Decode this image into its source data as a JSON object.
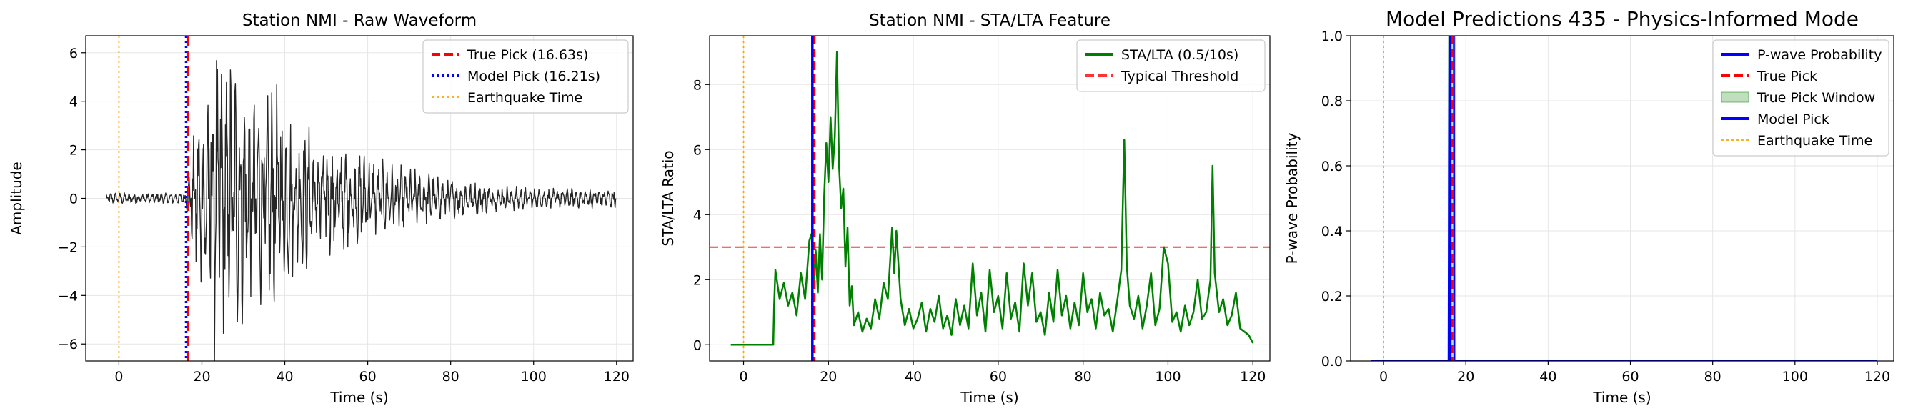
{
  "chart_data": [
    {
      "type": "line",
      "title": "Station NMI - Raw Waveform",
      "xlabel": "Time (s)",
      "ylabel": "Amplitude",
      "xlim": [
        -8,
        124
      ],
      "ylim": [
        -6.7,
        6.7
      ],
      "xticks": [
        0,
        20,
        40,
        60,
        80,
        100,
        120
      ],
      "yticks": [
        -6,
        -4,
        -2,
        0,
        2,
        4,
        6
      ],
      "grid": true,
      "legend_position": "top-right",
      "series": [
        {
          "name": "",
          "kind": "waveform",
          "color": "#262626",
          "x_start": -3,
          "x_end": 120,
          "pick": 16.2,
          "peak_time": 21.5,
          "noise_amp": 0.25,
          "peak_amp": 6.1
        }
      ],
      "vlines": [
        {
          "name": "True Pick (16.63s)",
          "x": 16.63,
          "color": "#ff0000",
          "style": "dashed",
          "legend": true
        },
        {
          "name": "Model Pick (16.21s)",
          "x": 16.21,
          "color": "#0000ff",
          "style": "dotted",
          "legend": true
        },
        {
          "name": "Earthquake Time",
          "x": 0,
          "color": "#ffa500",
          "style": "dotted",
          "legend": true
        }
      ]
    },
    {
      "type": "line",
      "title": "Station NMI - STA/LTA Feature",
      "xlabel": "Time (s)",
      "ylabel": "STA/LTA Ratio",
      "xlim": [
        -8,
        124
      ],
      "ylim": [
        -0.5,
        9.5
      ],
      "xticks": [
        0,
        20,
        40,
        60,
        80,
        100,
        120
      ],
      "yticks": [
        0,
        2,
        4,
        6,
        8
      ],
      "grid": true,
      "legend_position": "top-right",
      "series": [
        {
          "name": "STA/LTA (0.5/10s)",
          "color": "#008000",
          "points": [
            [
              -3,
              0
            ],
            [
              7,
              0
            ],
            [
              7.2,
              1.2
            ],
            [
              7.5,
              2.3
            ],
            [
              8.5,
              1.4
            ],
            [
              9.5,
              1.9
            ],
            [
              10.5,
              1.2
            ],
            [
              11.5,
              1.6
            ],
            [
              12.5,
              0.9
            ],
            [
              13.5,
              2.2
            ],
            [
              14.5,
              1.4
            ],
            [
              15.5,
              3.2
            ],
            [
              16,
              3.4
            ],
            [
              16.6,
              2.0
            ],
            [
              17,
              2.9
            ],
            [
              17.5,
              1.6
            ],
            [
              18,
              3.4
            ],
            [
              18.5,
              2.0
            ],
            [
              19,
              4.6
            ],
            [
              19.5,
              6.2
            ],
            [
              20,
              5.0
            ],
            [
              20.5,
              7.0
            ],
            [
              21,
              5.4
            ],
            [
              21.5,
              6.4
            ],
            [
              22,
              9.0
            ],
            [
              22.5,
              5.5
            ],
            [
              23,
              4.2
            ],
            [
              23.5,
              4.8
            ],
            [
              24,
              2.4
            ],
            [
              24.5,
              3.6
            ],
            [
              25,
              1.2
            ],
            [
              25.5,
              1.8
            ],
            [
              26,
              0.6
            ],
            [
              27,
              1.0
            ],
            [
              28,
              0.4
            ],
            [
              29,
              0.8
            ],
            [
              30,
              0.5
            ],
            [
              31,
              1.4
            ],
            [
              32,
              0.8
            ],
            [
              33,
              1.9
            ],
            [
              34,
              1.4
            ],
            [
              35,
              3.6
            ],
            [
              35.5,
              2.2
            ],
            [
              36,
              3.5
            ],
            [
              37,
              1.4
            ],
            [
              38,
              0.6
            ],
            [
              39,
              1.1
            ],
            [
              40,
              0.5
            ],
            [
              41,
              0.8
            ],
            [
              42,
              1.3
            ],
            [
              43,
              0.4
            ],
            [
              44,
              1.1
            ],
            [
              45,
              0.7
            ],
            [
              46,
              1.5
            ],
            [
              47,
              0.5
            ],
            [
              48,
              0.9
            ],
            [
              49,
              0.3
            ],
            [
              50,
              1.4
            ],
            [
              51,
              0.6
            ],
            [
              52,
              1.2
            ],
            [
              53,
              0.5
            ],
            [
              54,
              2.5
            ],
            [
              55,
              0.9
            ],
            [
              56,
              1.6
            ],
            [
              57,
              0.4
            ],
            [
              58,
              2.3
            ],
            [
              59,
              1.0
            ],
            [
              60,
              1.5
            ],
            [
              61,
              0.5
            ],
            [
              62,
              2.2
            ],
            [
              63,
              0.8
            ],
            [
              64,
              1.3
            ],
            [
              65,
              0.4
            ],
            [
              66,
              2.5
            ],
            [
              67,
              1.2
            ],
            [
              68,
              2.2
            ],
            [
              69,
              0.7
            ],
            [
              70,
              1.0
            ],
            [
              71,
              0.3
            ],
            [
              72,
              1.6
            ],
            [
              73,
              0.7
            ],
            [
              74,
              2.3
            ],
            [
              75,
              0.9
            ],
            [
              76,
              1.5
            ],
            [
              77,
              0.5
            ],
            [
              78,
              1.3
            ],
            [
              79,
              0.6
            ],
            [
              80,
              2.2
            ],
            [
              81,
              1.0
            ],
            [
              82,
              1.4
            ],
            [
              83,
              0.5
            ],
            [
              84,
              1.6
            ],
            [
              85,
              0.9
            ],
            [
              86,
              1.1
            ],
            [
              87,
              0.4
            ],
            [
              88,
              1.3
            ],
            [
              89,
              2.3
            ],
            [
              89.7,
              6.3
            ],
            [
              90.3,
              2.4
            ],
            [
              91,
              1.2
            ],
            [
              92,
              0.8
            ],
            [
              93,
              1.5
            ],
            [
              94,
              0.5
            ],
            [
              95,
              1.2
            ],
            [
              96,
              2.2
            ],
            [
              97,
              0.6
            ],
            [
              98,
              1.1
            ],
            [
              99,
              3.0
            ],
            [
              100,
              2.5
            ],
            [
              101,
              0.7
            ],
            [
              102,
              1.0
            ],
            [
              103,
              0.4
            ],
            [
              104,
              1.2
            ],
            [
              105,
              0.6
            ],
            [
              106,
              1.0
            ],
            [
              107,
              2.0
            ],
            [
              108,
              0.8
            ],
            [
              109,
              1.0
            ],
            [
              110,
              2.0
            ],
            [
              110.5,
              5.5
            ],
            [
              111,
              2.2
            ],
            [
              112,
              1.0
            ],
            [
              113,
              1.4
            ],
            [
              114,
              0.6
            ],
            [
              115,
              0.9
            ],
            [
              116,
              1.6
            ],
            [
              117,
              0.5
            ],
            [
              118,
              0.4
            ],
            [
              119,
              0.3
            ],
            [
              120,
              0.05
            ]
          ]
        }
      ],
      "hlines": [
        {
          "name": "Typical Threshold",
          "y": 3,
          "color": "#ff0000",
          "style": "dashed",
          "legend": true
        }
      ],
      "vlines": [
        {
          "name": "",
          "x": 16.63,
          "color": "#ff0000",
          "style": "dashed",
          "legend": false
        },
        {
          "name": "",
          "x": 16.21,
          "color": "#0000ff",
          "style": "solid",
          "legend": false
        },
        {
          "name": "",
          "x": 0,
          "color": "#ffa500",
          "style": "dotted",
          "legend": false
        }
      ]
    },
    {
      "type": "line",
      "title": "Model Predictions 435 - Physics-Informed Mode",
      "xlabel": "Time (s)",
      "ylabel": "P-wave Probability",
      "xlim": [
        -8,
        124
      ],
      "ylim": [
        0,
        1
      ],
      "xticks": [
        0,
        20,
        40,
        60,
        80,
        100,
        120
      ],
      "yticks": [
        0.0,
        0.2,
        0.4,
        0.6,
        0.8,
        1.0
      ],
      "grid": true,
      "legend_position": "top-right",
      "series": [
        {
          "name": "P-wave Probability",
          "color": "#0000ff",
          "points": [
            [
              -3,
              0
            ],
            [
              15.8,
              0
            ],
            [
              15.9,
              0.58
            ],
            [
              16,
              1.0
            ],
            [
              17.1,
              1.0
            ],
            [
              17.2,
              0.0
            ],
            [
              120,
              0
            ]
          ]
        }
      ],
      "spans": [
        {
          "name": "True Pick Window",
          "x0": 15.6,
          "x1": 17.7,
          "color": "#008000",
          "alpha": 0.25
        }
      ],
      "vlines": [
        {
          "name": "True Pick",
          "x": 16.63,
          "color": "#ff0000",
          "style": "dashed",
          "legend": true
        },
        {
          "name": "Model Pick",
          "x": 16.21,
          "color": "#0000ff",
          "style": "solid",
          "legend": true
        },
        {
          "name": "Earthquake Time",
          "x": 0,
          "color": "#ffa500",
          "style": "dotted",
          "legend": true
        }
      ],
      "legend_order": [
        "P-wave Probability",
        "True Pick",
        "True Pick Window",
        "Model Pick",
        "Earthquake Time"
      ]
    }
  ]
}
